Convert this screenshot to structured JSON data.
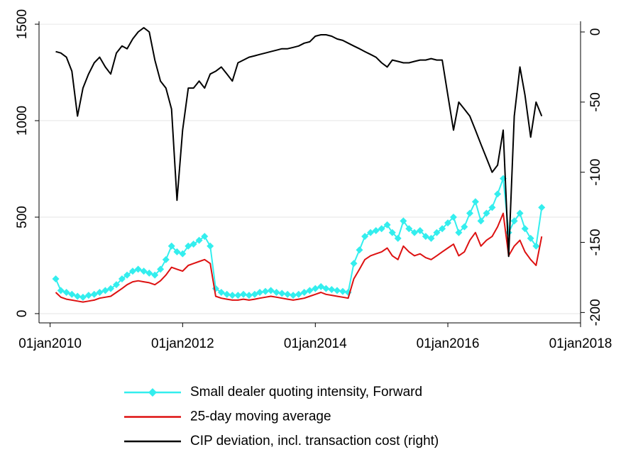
{
  "chart_data": {
    "type": "line",
    "x": [
      "2010-02-01",
      "2010-03-01",
      "2010-04-01",
      "2010-05-01",
      "2010-06-01",
      "2010-07-01",
      "2010-08-01",
      "2010-09-01",
      "2010-10-01",
      "2010-11-01",
      "2010-12-01",
      "2011-01-01",
      "2011-02-01",
      "2011-03-01",
      "2011-04-01",
      "2011-05-01",
      "2011-06-01",
      "2011-07-01",
      "2011-08-01",
      "2011-09-01",
      "2011-10-01",
      "2011-11-01",
      "2011-12-01",
      "2012-01-01",
      "2012-02-01",
      "2012-03-01",
      "2012-04-01",
      "2012-05-01",
      "2012-06-01",
      "2012-07-01",
      "2012-08-01",
      "2012-09-01",
      "2012-10-01",
      "2012-11-01",
      "2012-12-01",
      "2013-01-01",
      "2013-02-01",
      "2013-03-01",
      "2013-04-01",
      "2013-05-01",
      "2013-06-01",
      "2013-07-01",
      "2013-08-01",
      "2013-09-01",
      "2013-10-01",
      "2013-11-01",
      "2013-12-01",
      "2014-01-01",
      "2014-02-01",
      "2014-03-01",
      "2014-04-01",
      "2014-05-01",
      "2014-06-01",
      "2014-07-01",
      "2014-08-01",
      "2014-09-01",
      "2014-10-01",
      "2014-11-01",
      "2014-12-01",
      "2015-01-01",
      "2015-02-01",
      "2015-03-01",
      "2015-04-01",
      "2015-05-01",
      "2015-06-01",
      "2015-07-01",
      "2015-08-01",
      "2015-09-01",
      "2015-10-01",
      "2015-11-01",
      "2015-12-01",
      "2016-01-01",
      "2016-02-01",
      "2016-03-01",
      "2016-04-01",
      "2016-05-01",
      "2016-06-01",
      "2016-07-01",
      "2016-08-01",
      "2016-09-01",
      "2016-10-01",
      "2016-11-01",
      "2016-12-01",
      "2017-01-01",
      "2017-02-01",
      "2017-03-01",
      "2017-04-01",
      "2017-05-01",
      "2017-06-01"
    ],
    "series": [
      {
        "name": "Small dealer quoting intensity, Forward",
        "color": "#33eeee",
        "marker": "diamond",
        "values": [
          180,
          120,
          110,
          100,
          90,
          85,
          95,
          100,
          110,
          120,
          130,
          150,
          180,
          200,
          220,
          230,
          220,
          210,
          200,
          230,
          280,
          350,
          320,
          310,
          350,
          360,
          380,
          400,
          350,
          130,
          110,
          100,
          95,
          95,
          100,
          95,
          100,
          110,
          115,
          120,
          110,
          105,
          100,
          95,
          100,
          110,
          120,
          130,
          140,
          130,
          125,
          120,
          115,
          110,
          260,
          330,
          400,
          420,
          430,
          440,
          460,
          420,
          390,
          480,
          440,
          420,
          430,
          400,
          390,
          420,
          440,
          470,
          500,
          420,
          450,
          520,
          580,
          480,
          520,
          550,
          620,
          700,
          420,
          480,
          520,
          440,
          390,
          350,
          550
        ]
      },
      {
        "name": "25-day moving average",
        "color": "#dd1111",
        "values": [
          110,
          85,
          75,
          70,
          65,
          60,
          65,
          70,
          80,
          85,
          90,
          110,
          130,
          150,
          165,
          170,
          165,
          160,
          150,
          170,
          200,
          240,
          230,
          220,
          250,
          260,
          270,
          280,
          260,
          90,
          80,
          75,
          70,
          70,
          75,
          70,
          75,
          80,
          85,
          90,
          85,
          80,
          75,
          70,
          75,
          80,
          90,
          100,
          110,
          100,
          95,
          90,
          85,
          80,
          180,
          230,
          280,
          300,
          310,
          320,
          340,
          300,
          280,
          350,
          320,
          300,
          310,
          290,
          280,
          300,
          320,
          340,
          360,
          300,
          320,
          380,
          420,
          350,
          380,
          400,
          450,
          520,
          300,
          350,
          380,
          320,
          280,
          250,
          400
        ]
      },
      {
        "name": "CIP deviation, incl. transaction cost (right)",
        "color": "#000000",
        "axis": "y2",
        "values": [
          -14,
          -15,
          -18,
          -28,
          -60,
          -40,
          -30,
          -22,
          -18,
          -25,
          -30,
          -15,
          -10,
          -12,
          -5,
          0,
          3,
          0,
          -20,
          -35,
          -40,
          -55,
          -120,
          -70,
          -40,
          -40,
          -35,
          -40,
          -30,
          -28,
          -25,
          -30,
          -35,
          -22,
          -20,
          -18,
          -17,
          -16,
          -15,
          -14,
          -13,
          -12,
          -12,
          -11,
          -10,
          -8,
          -7,
          -3,
          -2,
          -2,
          -3,
          -5,
          -6,
          -8,
          -10,
          -12,
          -14,
          -16,
          -18,
          -22,
          -25,
          -20,
          -21,
          -22,
          -22,
          -21,
          -20,
          -20,
          -19,
          -20,
          -20,
          -45,
          -70,
          -50,
          -55,
          -60,
          -70,
          -80,
          -90,
          -100,
          -95,
          -70,
          -160,
          -60,
          -25,
          -45,
          -75,
          -50,
          -60
        ]
      }
    ],
    "xlim": [
      "2009-11-01",
      "2018-01-01"
    ],
    "xticks": [
      {
        "value": "2010-01-01",
        "label": "01jan2010"
      },
      {
        "value": "2012-01-01",
        "label": "01jan2012"
      },
      {
        "value": "2014-01-01",
        "label": "01jan2014"
      },
      {
        "value": "2016-01-01",
        "label": "01jan2016"
      },
      {
        "value": "2018-01-01",
        "label": "01jan2018"
      }
    ],
    "ylim": [
      -48,
      1515
    ],
    "yticks": [
      0,
      500,
      1000,
      1500
    ],
    "y2lim": [
      -207.4,
      7.6
    ],
    "y2ticks": [
      0,
      -50,
      -100,
      -150,
      -200
    ],
    "grid": true
  }
}
